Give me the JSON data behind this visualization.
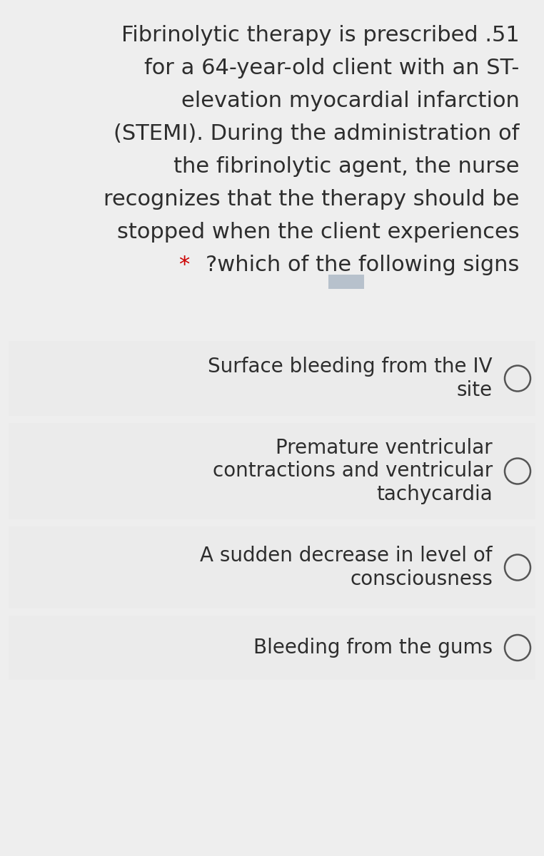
{
  "background_color": "#eeeeee",
  "question_text_color": "#2d2d2d",
  "star_color": "#cc0000",
  "question_lines": [
    "Fibrinolytic therapy is prescribed .51",
    "for a 64-year-old client with an ST-",
    "elevation myocardial infarction",
    "(STEMI). During the administration of",
    "the fibrinolytic agent, the nurse",
    "recognizes that the therapy should be",
    "stopped when the client experiences"
  ],
  "star_text": "* ",
  "last_line_rest": "?which of the following signs",
  "options": [
    "Surface bleeding from the IV\nsite",
    "Premature ventricular\ncontractions and ventricular\ntachycardia",
    "A sudden decrease in level of\nconsciousness",
    "Bleeding from the gums"
  ],
  "option_bg": "#ebebeb",
  "option_text_color": "#2d2d2d",
  "option_font_size": 20,
  "question_font_size": 22,
  "circle_color": "#555555",
  "small_rect_color": "#9aaabb",
  "figsize": [
    7.62,
    12.0
  ],
  "dpi": 100
}
